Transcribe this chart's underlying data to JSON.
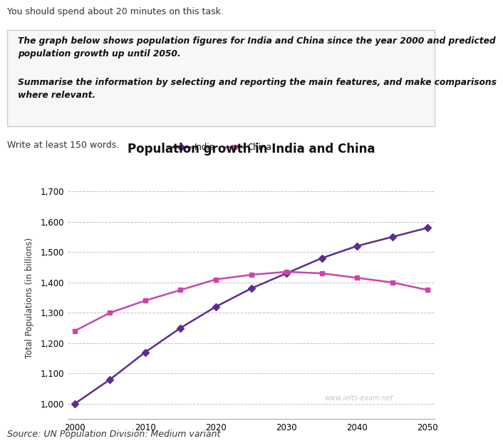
{
  "title": "Population growth in India and China",
  "ylabel": "Total Populations (in billions)",
  "source": "Source: UN Population Division: Medium variant",
  "watermark": "www.ielts-exam.net",
  "header_text1": "You should spend about 20 minutes on this task.",
  "header_box_line1": "The graph below shows population figures for India and China since the year 2000 and predicted",
  "header_box_line2": "population growth up until 2050.",
  "header_box_line3": "Summarise the information by selecting and reporting the main features, and make comparisons",
  "header_box_line4": "where relevant.",
  "footer_text": "Write at least 150 words.",
  "india_years": [
    2000,
    2005,
    2010,
    2015,
    2020,
    2025,
    2030,
    2035,
    2040,
    2045,
    2050
  ],
  "india_values": [
    1000,
    1080,
    1170,
    1250,
    1320,
    1380,
    1430,
    1480,
    1520,
    1550,
    1580
  ],
  "china_years": [
    2000,
    2005,
    2010,
    2015,
    2020,
    2025,
    2030,
    2035,
    2040,
    2045,
    2050
  ],
  "china_values": [
    1240,
    1300,
    1340,
    1375,
    1410,
    1425,
    1435,
    1430,
    1415,
    1400,
    1375
  ],
  "india_color": "#5b2d8e",
  "china_color": "#cc44aa",
  "ylim_min": 950,
  "ylim_max": 1750,
  "yticks": [
    1000,
    1100,
    1200,
    1300,
    1400,
    1500,
    1600,
    1700
  ],
  "xticks": [
    2000,
    2010,
    2020,
    2030,
    2040,
    2050
  ],
  "bg_color": "#ffffff",
  "grid_color": "#999999",
  "box_bg_color": "#f7f7f7",
  "box_border_color": "#cccccc"
}
